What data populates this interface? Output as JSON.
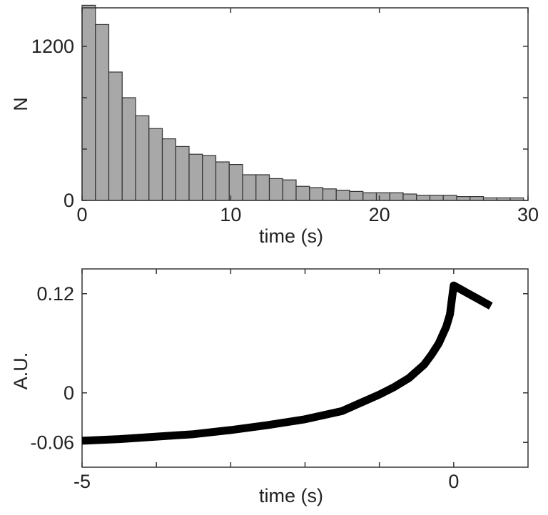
{
  "chart_data": [
    {
      "type": "bar",
      "xlabel": "time (s)",
      "ylabel": "N",
      "xlim": [
        0,
        30
      ],
      "ylim": [
        0,
        1500
      ],
      "x_ticks": [
        0,
        10,
        20,
        30
      ],
      "x_tick_labels": [
        "0",
        "10",
        "20",
        "30"
      ],
      "y_ticks": [
        0,
        400,
        800,
        1200
      ],
      "y_tick_labels": [
        "0",
        "",
        "",
        "1200"
      ],
      "grid": false,
      "bin_width": 0.9,
      "bin_centers": [
        0.45,
        1.35,
        2.25,
        3.15,
        4.05,
        4.95,
        5.85,
        6.75,
        7.65,
        8.55,
        9.45,
        10.35,
        11.25,
        12.15,
        13.05,
        13.95,
        14.85,
        15.75,
        16.65,
        17.55,
        18.45,
        19.35,
        20.25,
        21.15,
        22.05,
        22.95,
        23.85,
        24.75,
        25.65,
        26.55,
        27.45,
        28.35,
        29.25
      ],
      "values": [
        1520,
        1370,
        1000,
        800,
        660,
        560,
        480,
        420,
        360,
        350,
        300,
        280,
        200,
        200,
        170,
        160,
        110,
        100,
        90,
        80,
        70,
        60,
        60,
        60,
        50,
        40,
        40,
        40,
        30,
        30,
        20,
        20,
        20
      ],
      "bar_color": "#a8a8a8",
      "edge_color": "#333333"
    },
    {
      "type": "line",
      "xlabel": "time (s)",
      "ylabel": "A.U.",
      "xlim": [
        -5,
        1
      ],
      "ylim": [
        -0.09,
        0.15
      ],
      "x_ticks": [
        -5,
        -4,
        -3,
        -2,
        -1,
        0
      ],
      "x_tick_labels": [
        "-5",
        "",
        "",
        "",
        "",
        "0"
      ],
      "y_ticks": [
        -0.06,
        0,
        0.12
      ],
      "y_tick_labels": [
        "-0.06",
        "0",
        "0.12"
      ],
      "grid": false,
      "series": [
        {
          "x": [
            -5,
            -4.5,
            -4,
            -3.5,
            -3,
            -2.5,
            -2,
            -1.5,
            -1,
            -0.8,
            -0.6,
            -0.4,
            -0.3,
            -0.2,
            -0.1,
            -0.05,
            0,
            0.1,
            0.2,
            0.3,
            0.4,
            0.5
          ],
          "y": [
            -0.058,
            -0.056,
            -0.053,
            -0.05,
            -0.045,
            -0.039,
            -0.032,
            -0.022,
            -0.002,
            0.007,
            0.018,
            0.034,
            0.046,
            0.06,
            0.08,
            0.095,
            0.13,
            0.125,
            0.12,
            0.115,
            0.11,
            0.105
          ],
          "color": "#000000"
        }
      ]
    }
  ]
}
